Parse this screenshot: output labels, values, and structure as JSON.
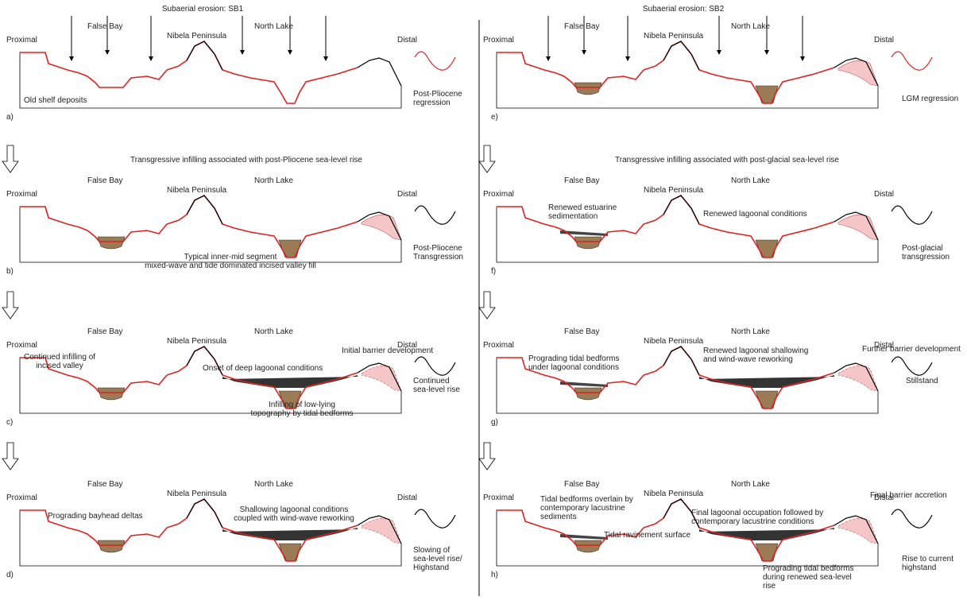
{
  "columns": [
    {
      "heading": "Subaerial erosion: SB1",
      "transition": "Transgressive infilling associated with post-Pliocene sea-level rise",
      "panels": [
        {
          "letter": "a)",
          "texts": [
            "Proximal",
            "False Bay",
            "Nibela Peninsula",
            "North Lake",
            "Distal",
            "Old shelf deposits",
            [
              "Post-Pliocene",
              "regression"
            ]
          ]
        },
        {
          "letter": "b)",
          "texts": [
            "Proximal",
            "False Bay",
            "Nibela Peninsula",
            "North Lake",
            "Distal",
            [
              "Typical inner-mid segment",
              "mixed-wave and tide dominated incised valley fill"
            ],
            [
              "Post-Pliocene",
              "Transgression"
            ]
          ]
        },
        {
          "letter": "c)",
          "texts": [
            "Proximal",
            "False Bay",
            "Nibela Peninsula",
            "North Lake",
            "Distal",
            [
              "Continued infilling of",
              "incised valley"
            ],
            "Initial barrier development",
            "Onset of deep lagoonal conditions",
            [
              "Infilling of low-lying",
              "topography by tidal bedforms"
            ],
            [
              "Continued",
              "sea-level rise"
            ]
          ]
        },
        {
          "letter": "d)",
          "texts": [
            "Proximal",
            "False Bay",
            "Nibela Peninsula",
            "North Lake",
            "Distal",
            "Prograding bayhead deltas",
            [
              "Shallowing lagoonal conditions",
              "coupled with wind-wave reworking"
            ],
            [
              "Slowing of",
              "sea-level rise/",
              "Highstand"
            ]
          ]
        }
      ]
    },
    {
      "heading": "Subaerial erosion: SB2",
      "transition": "Transgressive infilling associated with post-glacial sea-level rise",
      "panels": [
        {
          "letter": "e)",
          "texts": [
            "Proximal",
            "False Bay",
            "Nibela Peninsula",
            "North Lake",
            "Distal",
            "LGM regression"
          ]
        },
        {
          "letter": "f)",
          "texts": [
            "Proximal",
            "False Bay",
            "Nibela Peninsula",
            "North Lake",
            "Distal",
            [
              "Renewed estuarine",
              "sedimentation"
            ],
            "Renewed lagoonal conditions",
            [
              "Post-glacial",
              "transgression"
            ]
          ]
        },
        {
          "letter": "g)",
          "texts": [
            "Proximal",
            "False Bay",
            "Nibela Peninsula",
            "North Lake",
            "Distal",
            [
              "Prograding tidal bedforms",
              "under lagoonal conditions"
            ],
            [
              "Renewed lagoonal shallowing",
              "and wind-wave reworking"
            ],
            "Further barrier development",
            "Stillstand"
          ]
        },
        {
          "letter": "h)",
          "texts": [
            "Proximal",
            "False Bay",
            "Nibela Peninsula",
            "North Lake",
            "Distal",
            [
              "Tidal bedforms overlain by",
              "contemporary lacustrine",
              "sediments"
            ],
            [
              "Final lagoonal occupation followed by",
              "contemporary lacustrine conditions"
            ],
            "Final barrier accretion",
            "Tidal ravinement surface",
            [
              "Prograding tidal bedforms",
              "during renewed sea-level",
              "rise"
            ],
            [
              "Rise to current",
              "highstand"
            ]
          ]
        }
      ]
    }
  ]
}
